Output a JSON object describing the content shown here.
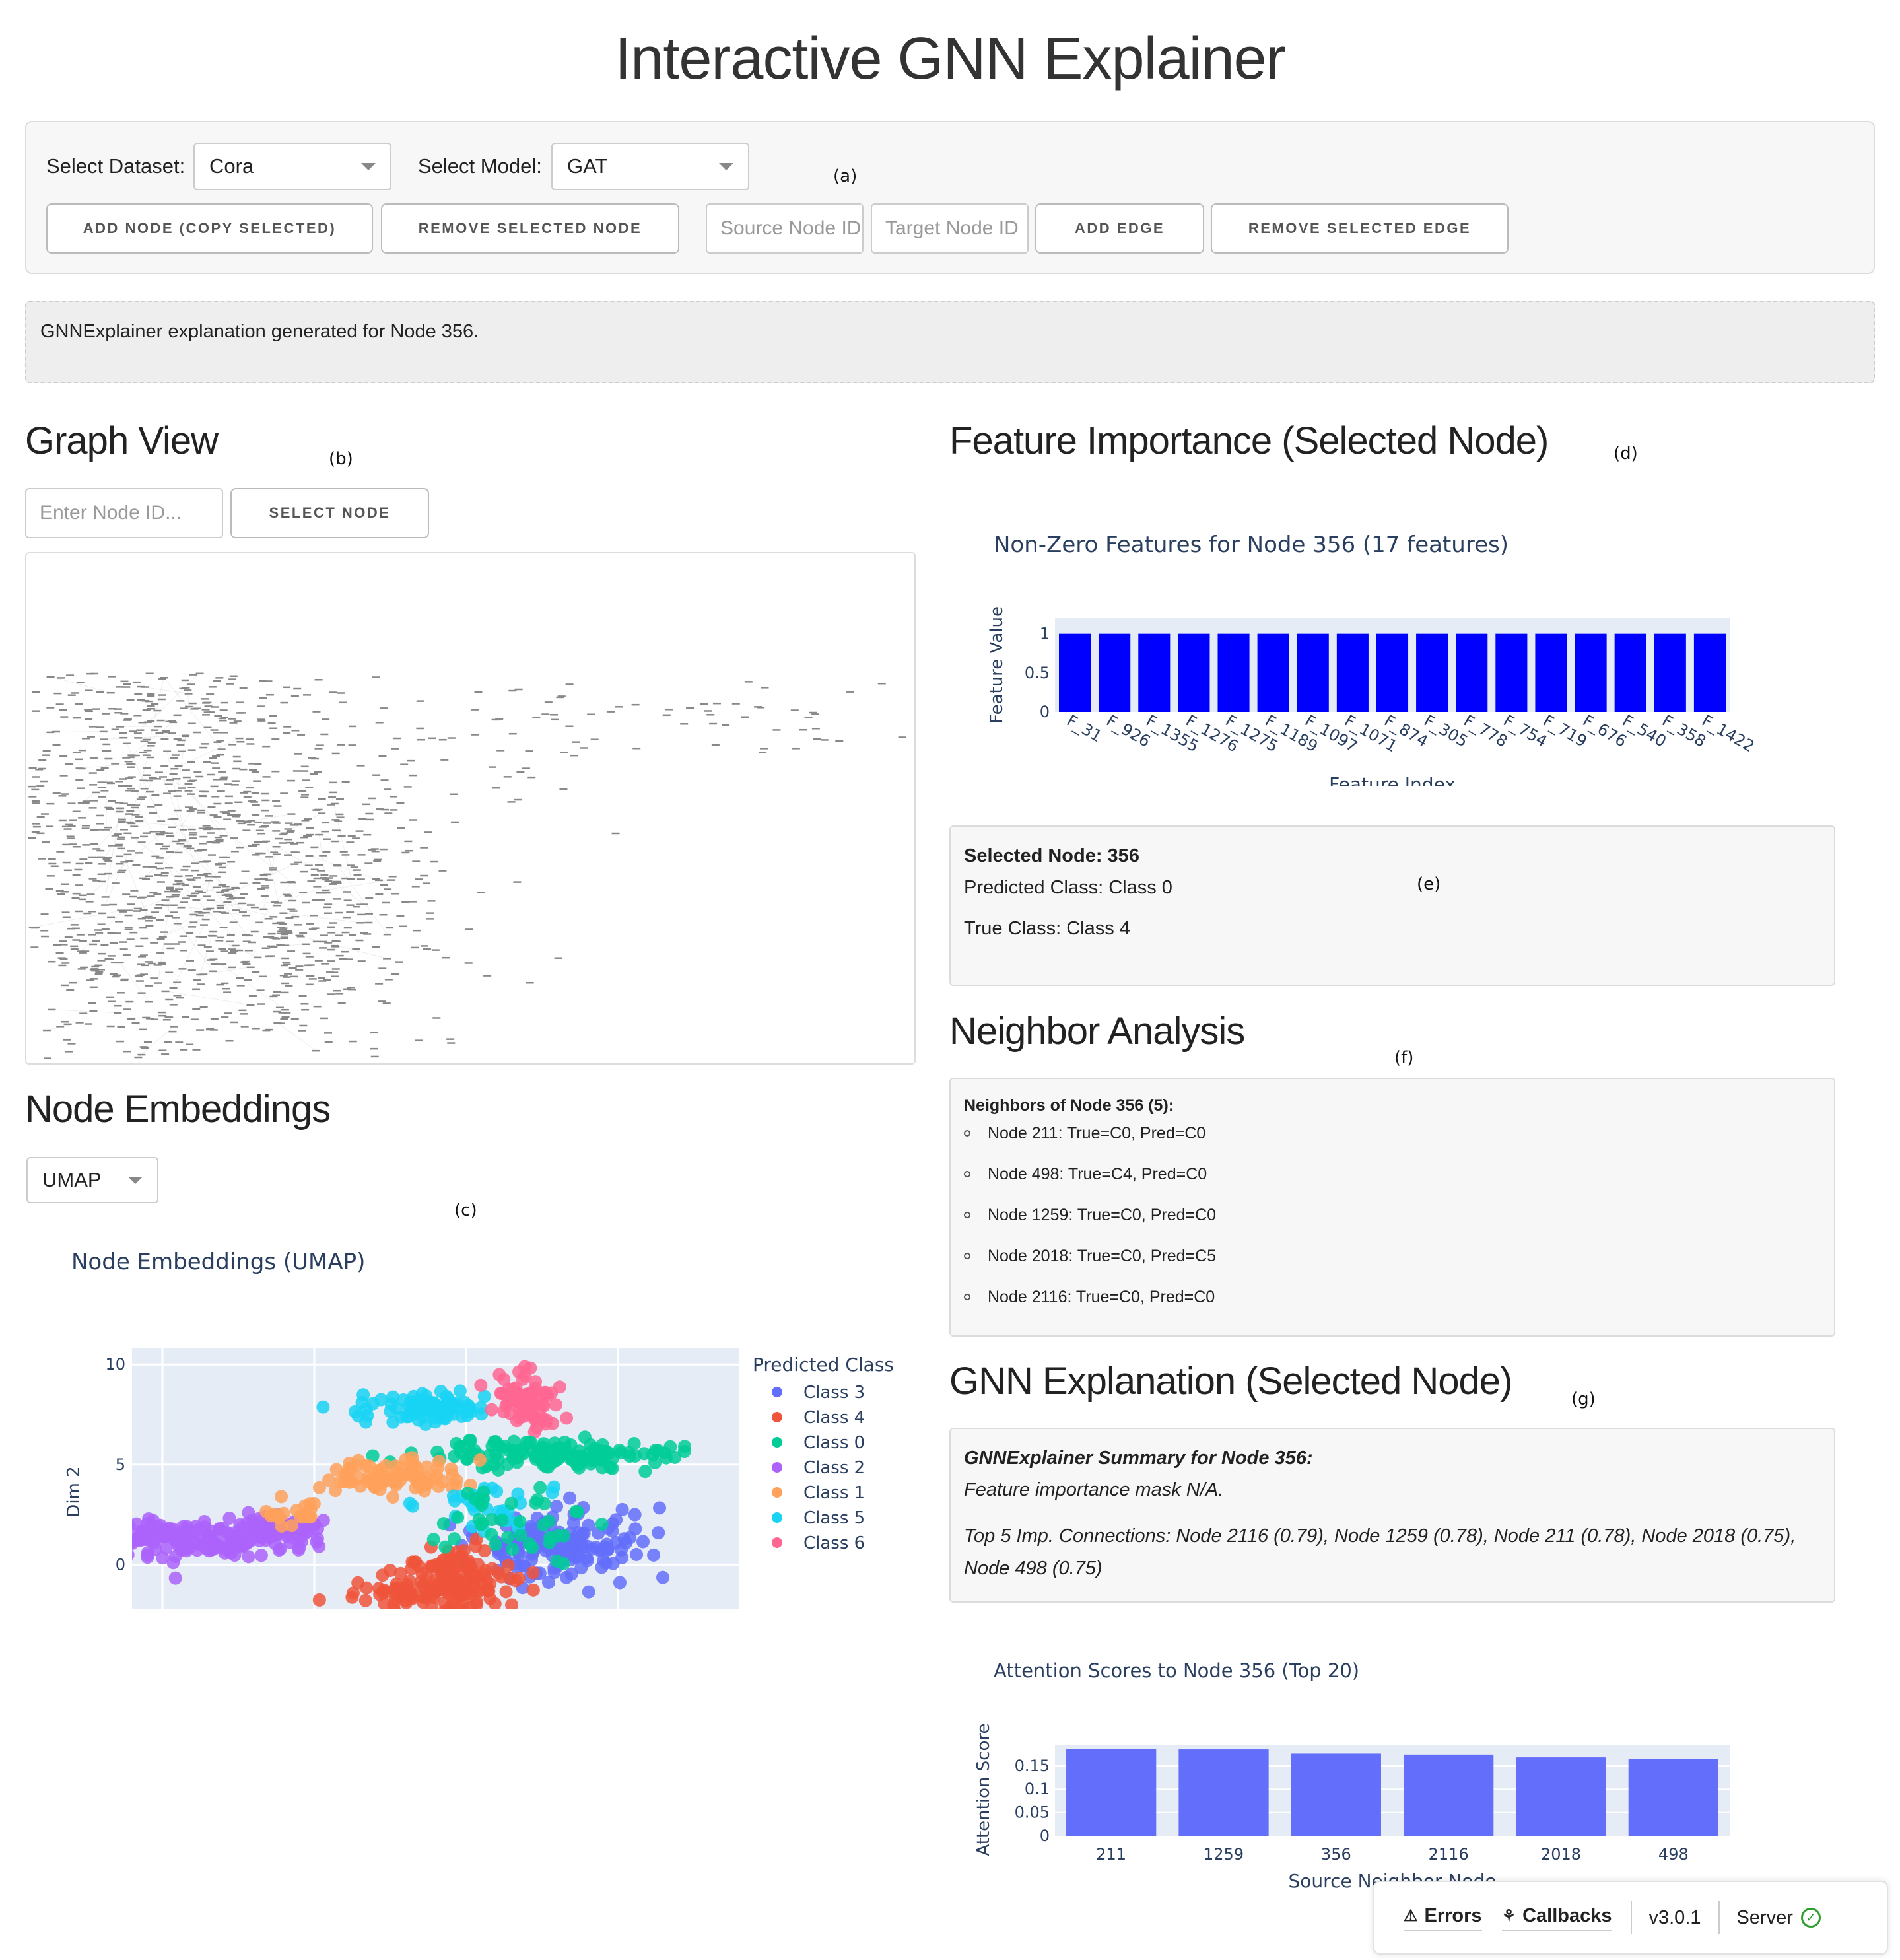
{
  "title": "Interactive GNN Explainer",
  "controls": {
    "dataset_label": "Select Dataset:",
    "dataset_value": "Cora",
    "model_label": "Select Model:",
    "model_value": "GAT",
    "add_node": "ADD NODE (COPY SELECTED)",
    "remove_node": "REMOVE SELECTED NODE",
    "source_placeholder": "Source Node ID",
    "target_placeholder": "Target Node ID",
    "add_edge": "ADD EDGE",
    "remove_edge": "REMOVE SELECTED EDGE",
    "annotation": "(a)"
  },
  "status": "GNNExplainer explanation generated for Node 356.",
  "graph_view": {
    "heading": "Graph View",
    "annotation": "(b)",
    "input_placeholder": "Enter Node ID...",
    "select_button": "SELECT NODE"
  },
  "embeddings": {
    "heading": "Node Embeddings",
    "annotation": "(c)",
    "method": "UMAP"
  },
  "feature_importance": {
    "heading": "Feature Importance (Selected Node)",
    "annotation": "(d)"
  },
  "selected_node": {
    "title": "Selected Node: 356",
    "predicted": "Predicted Class: Class 0",
    "true": "True Class: Class 4",
    "annotation": "(e)"
  },
  "neighbors": {
    "heading": "Neighbor Analysis",
    "annotation": "(f)",
    "title": "Neighbors of Node 356 (5):",
    "items": [
      "Node 211: True=C0, Pred=C0",
      "Node 498: True=C4, Pred=C0",
      "Node 1259: True=C0, Pred=C0",
      "Node 2018: True=C0, Pred=C5",
      "Node 2116: True=C0, Pred=C0"
    ]
  },
  "explanation": {
    "heading": "GNN Explanation (Selected Node)",
    "annotation": "(g)",
    "summary_title": "GNNExplainer Summary for Node 356:",
    "mask": "Feature importance mask N/A.",
    "top_connections": "Top 5 Imp. Connections: Node 2116 (0.79), Node 1259 (0.78), Node 211 (0.78), Node 2018 (0.75), Node 498 (0.75)"
  },
  "debug_bar": {
    "errors": "Errors",
    "callbacks": "Callbacks",
    "version": "v3.0.1",
    "server": "Server"
  },
  "colors": {
    "bar_blue": "#0000ff",
    "attention_bar": "#636efa",
    "plot_bg": "#e5ecf6",
    "Class 3": "#636efa",
    "Class 4": "#ef553b",
    "Class 0": "#00cc96",
    "Class 2": "#ab63fa",
    "Class 1": "#ffa15a",
    "Class 5": "#19d3f3",
    "Class 6": "#ff6692"
  },
  "chart_data": [
    {
      "type": "bar",
      "title": "Non-Zero Features for Node 356 (17 features)",
      "xlabel": "Feature Index",
      "ylabel": "Feature Value",
      "categories": [
        "F_31",
        "F_926",
        "F_1355",
        "F_1276",
        "F_1275",
        "F_1189",
        "F_1097",
        "F_1071",
        "F_874",
        "F_305",
        "F_778",
        "F_754",
        "F_719",
        "F_676",
        "F_540",
        "F_358",
        "F_1422"
      ],
      "values": [
        1,
        1,
        1,
        1,
        1,
        1,
        1,
        1,
        1,
        1,
        1,
        1,
        1,
        1,
        1,
        1,
        1
      ],
      "yticks": [
        "0",
        "0.5",
        "1"
      ],
      "ylim": [
        0,
        1.2
      ]
    },
    {
      "type": "scatter",
      "title": "Node Embeddings (UMAP)",
      "xlabel": "",
      "ylabel": "Dim 2",
      "legend_title": "Predicted Class",
      "legend": [
        "Class 3",
        "Class 4",
        "Class 0",
        "Class 2",
        "Class 1",
        "Class 5",
        "Class 6"
      ],
      "yticks": [
        "0",
        "5",
        "10"
      ],
      "clusters": [
        {
          "class": "Class 2",
          "cx": -4.2,
          "cy": 1.3,
          "sx": 1.3,
          "sy": 0.45,
          "n": 140
        },
        {
          "class": "Class 2",
          "cx": -1.3,
          "cy": 1.5,
          "sx": 0.9,
          "sy": 0.5,
          "n": 70
        },
        {
          "class": "Class 5",
          "cx": 3.5,
          "cy": 7.8,
          "sx": 1.2,
          "sy": 0.35,
          "n": 90
        },
        {
          "class": "Class 6",
          "cx": 7.0,
          "cy": 8.3,
          "sx": 0.6,
          "sy": 0.7,
          "n": 70
        },
        {
          "class": "Class 0",
          "cx": 7.8,
          "cy": 5.5,
          "sx": 1.8,
          "sy": 0.35,
          "n": 140
        },
        {
          "class": "Class 1",
          "cx": 2.4,
          "cy": 4.4,
          "sx": 1.2,
          "sy": 0.4,
          "n": 80
        },
        {
          "class": "Class 3",
          "cx": 8.2,
          "cy": 1.1,
          "sx": 1.3,
          "sy": 0.9,
          "n": 150
        },
        {
          "class": "Class 4",
          "cx": 4.7,
          "cy": -0.8,
          "sx": 0.9,
          "sy": 0.8,
          "n": 130
        },
        {
          "class": "Class 4",
          "cx": 3.2,
          "cy": -1.5,
          "sx": 1.0,
          "sy": 0.3,
          "n": 50
        },
        {
          "class": "Class 5",
          "cx": 5.5,
          "cy": 3.0,
          "sx": 1.0,
          "sy": 0.6,
          "n": 30
        },
        {
          "class": "Class 1",
          "cx": -0.5,
          "cy": 2.6,
          "sx": 0.5,
          "sy": 0.3,
          "n": 20
        },
        {
          "class": "Class 0",
          "cx": 6.5,
          "cy": 2.0,
          "sx": 1.2,
          "sy": 0.9,
          "n": 40
        }
      ]
    },
    {
      "type": "bar",
      "title": "Attention Scores to Node 356 (Top 20)",
      "xlabel": "Source Neighbor Node",
      "ylabel": "Attention Score",
      "categories": [
        "211",
        "1259",
        "356",
        "2116",
        "2018",
        "498"
      ],
      "values": [
        0.186,
        0.185,
        0.176,
        0.174,
        0.168,
        0.165
      ],
      "yticks": [
        "0",
        "0.05",
        "0.1",
        "0.15"
      ],
      "ylim": [
        0,
        0.195
      ]
    }
  ]
}
